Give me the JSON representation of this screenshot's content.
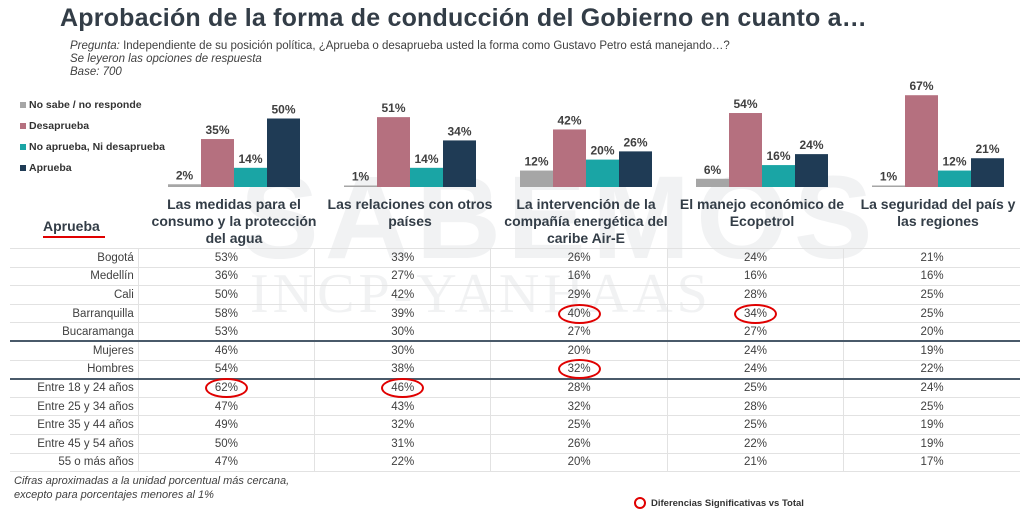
{
  "title": "Aprobación de la forma de conducción del Gobierno en cuanto a…",
  "question_label": "Pregunta:",
  "question_text": " Independiente de su posición política, ¿Aprueba o desaprueba usted la forma como Gustavo Petro está manejando…?",
  "note_options": "Se leyeron las opciones de respuesta",
  "base": "Base: 700",
  "colors": {
    "no_sabe": "#a6a6a6",
    "desaprueba": "#b5707f",
    "ni": "#1aa5a5",
    "aprueba": "#1f3b55",
    "highlight": "#e00000"
  },
  "chart_data": {
    "type": "bar",
    "categories": [
      "Las medidas para el consumo y la protección del agua",
      "Las relaciones con otros países",
      "La intervención de la compañía energética del caribe Air-E",
      "El manejo económico de Ecopetrol",
      "La seguridad del país y las regiones"
    ],
    "series": [
      {
        "name": "No sabe / no responde",
        "values": [
          2,
          1,
          12,
          6,
          1
        ],
        "labels": [
          "2%",
          "1%",
          "12%",
          "6%",
          "1%"
        ]
      },
      {
        "name": "Desaprueba",
        "values": [
          35,
          51,
          42,
          54,
          67
        ],
        "labels": [
          "35%",
          "51%",
          "42%",
          "54%",
          "67%"
        ]
      },
      {
        "name": "No aprueba, Ni desaprueba",
        "values": [
          14,
          14,
          20,
          16,
          12
        ],
        "labels": [
          "14%",
          "14%",
          "20%",
          "16%",
          "12%"
        ]
      },
      {
        "name": "Aprueba",
        "values": [
          50,
          34,
          26,
          24,
          21
        ],
        "labels": [
          "50%",
          "34%",
          "26%",
          "24%",
          "21%"
        ]
      }
    ],
    "legend_position": "left",
    "ylim": [
      0,
      70
    ]
  },
  "legend": [
    {
      "label": "No sabe / no responde",
      "color": "#a6a6a6"
    },
    {
      "label": "Desaprueba",
      "color": "#b5707f"
    },
    {
      "label": "No aprueba, Ni desaprueba",
      "color": "#1aa5a5"
    },
    {
      "label": "Aprueba",
      "color": "#1f3b55"
    }
  ],
  "cat_labels": [
    "Las medidas para el consumo y la protección del agua",
    "Las relaciones con otros países",
    "La intervención de la compañía energética del caribe Air-E",
    "El manejo económico de Ecopetrol",
    "La seguridad del país y las regiones"
  ],
  "table_heading": "Aprueba",
  "watermark_top": "SABEMOS",
  "watermark_bottom": "INCP-YANHAAS",
  "table": {
    "rows": [
      {
        "label": "Bogotá",
        "values": [
          "53%",
          "33%",
          "26%",
          "24%",
          "21%"
        ],
        "circled": [],
        "sep": false
      },
      {
        "label": "Medellín",
        "values": [
          "36%",
          "27%",
          "16%",
          "16%",
          "16%"
        ],
        "circled": [],
        "sep": false
      },
      {
        "label": "Cali",
        "values": [
          "50%",
          "42%",
          "29%",
          "28%",
          "25%"
        ],
        "circled": [],
        "sep": false
      },
      {
        "label": "Barranquilla",
        "values": [
          "58%",
          "39%",
          "40%",
          "34%",
          "25%"
        ],
        "circled": [
          2,
          3
        ],
        "sep": false
      },
      {
        "label": "Bucaramanga",
        "values": [
          "53%",
          "30%",
          "27%",
          "27%",
          "20%"
        ],
        "circled": [],
        "sep": true
      },
      {
        "label": "Mujeres",
        "values": [
          "46%",
          "30%",
          "20%",
          "24%",
          "19%"
        ],
        "circled": [],
        "sep": false
      },
      {
        "label": "Hombres",
        "values": [
          "54%",
          "38%",
          "32%",
          "24%",
          "22%"
        ],
        "circled": [
          2
        ],
        "sep": true
      },
      {
        "label": "Entre 18 y 24 años",
        "values": [
          "62%",
          "46%",
          "28%",
          "25%",
          "24%"
        ],
        "circled": [
          0,
          1
        ],
        "sep": false
      },
      {
        "label": "Entre 25 y 34 años",
        "values": [
          "47%",
          "43%",
          "32%",
          "28%",
          "25%"
        ],
        "circled": [],
        "sep": false
      },
      {
        "label": "Entre 35 y 44 años",
        "values": [
          "49%",
          "32%",
          "25%",
          "25%",
          "19%"
        ],
        "circled": [],
        "sep": false
      },
      {
        "label": "Entre 45 y 54 años",
        "values": [
          "50%",
          "31%",
          "26%",
          "22%",
          "19%"
        ],
        "circled": [],
        "sep": false
      },
      {
        "label": "55 o más años",
        "values": [
          "47%",
          "22%",
          "20%",
          "21%",
          "17%"
        ],
        "circled": [],
        "sep": false
      }
    ]
  },
  "footnote": "Cifras aproximadas a la unidad porcentual más cercana, excepto para porcentajes menores al 1%",
  "significance_label": "Diferencias Significativas vs Total"
}
